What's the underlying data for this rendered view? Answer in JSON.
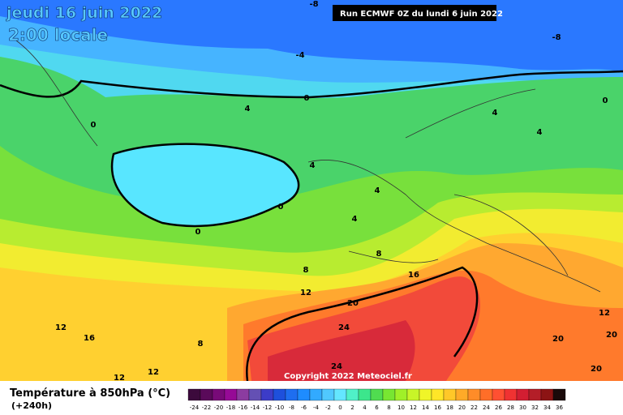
{
  "header": {
    "date": "jeudi 16 juin 2022",
    "time": "2:00 locale",
    "run": "Run ECMWF 0Z du lundi 6 juin 2022"
  },
  "map": {
    "labels": [
      -8,
      -8,
      -4,
      0,
      0,
      4,
      0,
      4,
      4,
      4,
      4,
      0,
      0,
      4,
      8,
      8,
      16,
      12,
      20,
      12,
      16,
      8,
      24,
      12,
      12,
      20,
      20,
      12,
      24,
      20
    ],
    "copyright": "Copyright 2022 Meteociel.fr"
  },
  "legend": {
    "title": "Température à 850hPa (°C)",
    "subtitle": "(+240h)",
    "scale": [
      -24,
      -22,
      -20,
      -18,
      -16,
      -14,
      -12,
      -10,
      -8,
      -6,
      -4,
      -2,
      0,
      2,
      4,
      6,
      8,
      10,
      12,
      14,
      16,
      18,
      20,
      22,
      24,
      26,
      28,
      30,
      32,
      34,
      36
    ],
    "colors": [
      "#3c0a3c",
      "#5a0a5a",
      "#780a78",
      "#960a96",
      "#8c3ca0",
      "#6450b4",
      "#3c3cc8",
      "#1e50dc",
      "#1e6ef0",
      "#1e8cff",
      "#32aaff",
      "#50c8ff",
      "#64e6ff",
      "#50f0c8",
      "#3ce68c",
      "#50dc50",
      "#78e632",
      "#a0f028",
      "#c8f528",
      "#f0f528",
      "#ffe628",
      "#ffc828",
      "#ffaa28",
      "#ff8c28",
      "#ff6e28",
      "#ff5032",
      "#f03232",
      "#d21e32",
      "#b41e28",
      "#8c1414",
      "#1a0a0a"
    ]
  }
}
